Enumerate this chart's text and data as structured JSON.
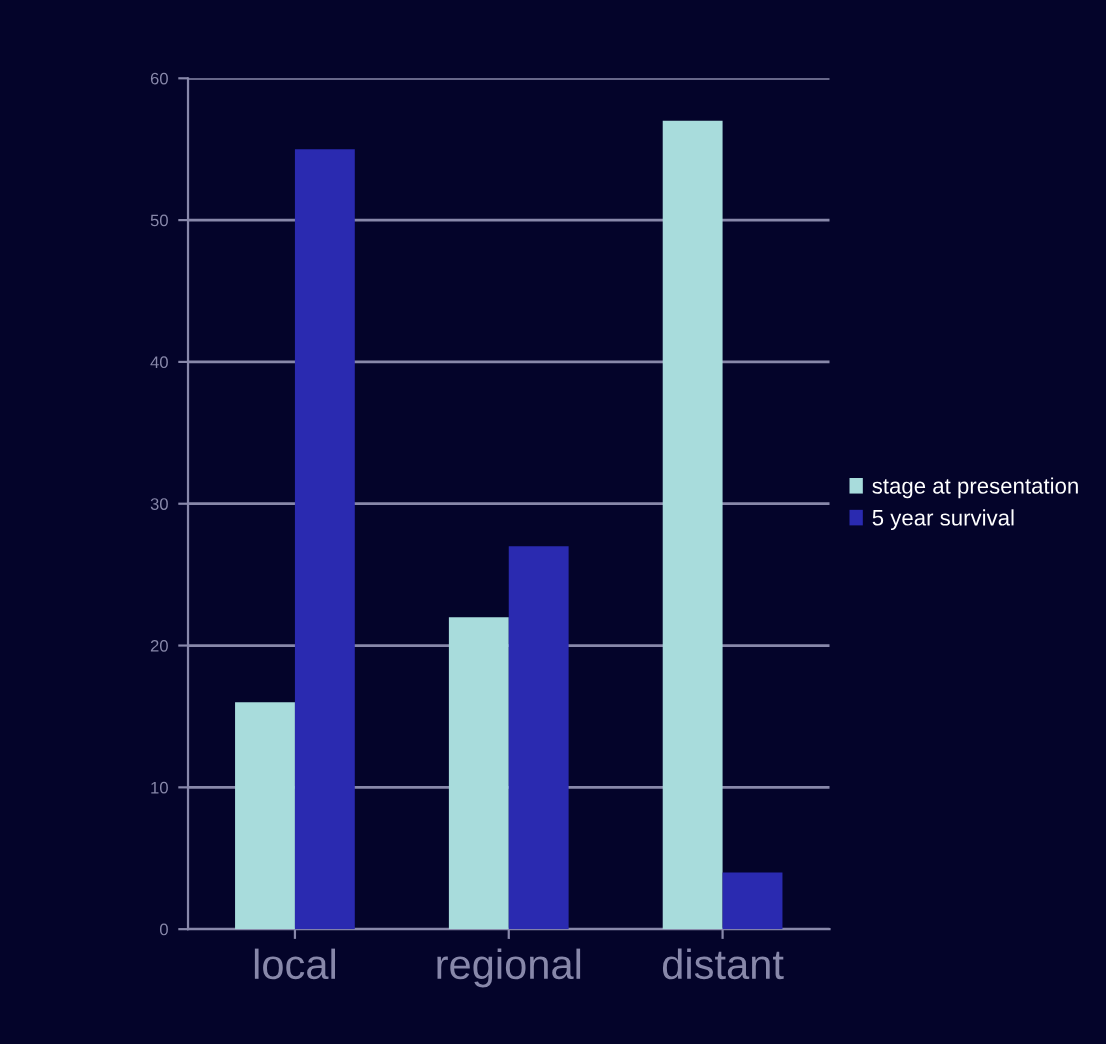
{
  "chart_data": {
    "type": "bar",
    "categories": [
      "local",
      "regional",
      "distant"
    ],
    "series": [
      {
        "name": "stage at presentation",
        "color": "#a8dcdc",
        "values": [
          16,
          22,
          57
        ]
      },
      {
        "name": "5 year survival",
        "color": "#2a2ab0",
        "values": [
          55,
          27,
          4
        ]
      }
    ],
    "ylim": [
      0,
      60
    ],
    "yticks": [
      0,
      10,
      20,
      30,
      40,
      50,
      60
    ],
    "grid": "y",
    "legend": "right"
  }
}
